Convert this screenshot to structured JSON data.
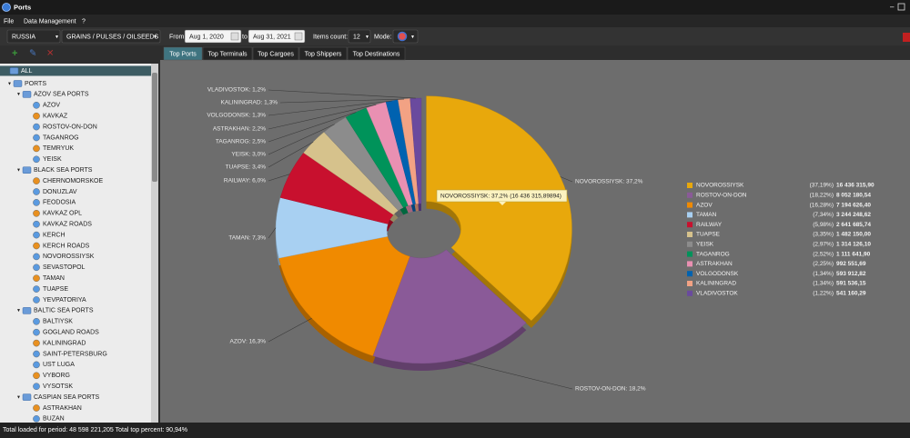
{
  "window": {
    "title": "Ports"
  },
  "menu": [
    "File",
    "Data Management",
    "?"
  ],
  "toolbar": {
    "country": "RUSSIA",
    "cargo": "GRAINS / PULSES / OILSEEDS",
    "from_label": "From",
    "from": "Aug 1, 2020",
    "to_label": "to",
    "to": "Aug 31, 2021",
    "items_label": "Items count:",
    "items": "12",
    "mode_label": "Mode:"
  },
  "tree": [
    {
      "label": "ALL",
      "level": 0
    },
    {
      "label": "PORTS",
      "level": 1
    },
    {
      "label": "AZOV SEA PORTS",
      "level": 2
    },
    {
      "label": "AZOV",
      "level": 3
    },
    {
      "label": "KAVKAZ",
      "level": 3
    },
    {
      "label": "ROSTOV-ON-DON",
      "level": 3
    },
    {
      "label": "TAGANROG",
      "level": 3
    },
    {
      "label": "TEMRYUK",
      "level": 3
    },
    {
      "label": "YEISK",
      "level": 3
    },
    {
      "label": "BLACK SEA PORTS",
      "level": 2
    },
    {
      "label": "CHERNOMORSKOE",
      "level": 3
    },
    {
      "label": "DONUZLAV",
      "level": 3
    },
    {
      "label": "FEODOSIA",
      "level": 3
    },
    {
      "label": "KAVKAZ OPL",
      "level": 3
    },
    {
      "label": "KAVKAZ ROADS",
      "level": 3
    },
    {
      "label": "KERCH",
      "level": 3
    },
    {
      "label": "KERCH ROADS",
      "level": 3
    },
    {
      "label": "NOVOROSSIYSK",
      "level": 3
    },
    {
      "label": "SEVASTOPOL",
      "level": 3
    },
    {
      "label": "TAMAN",
      "level": 3
    },
    {
      "label": "TUAPSE",
      "level": 3
    },
    {
      "label": "YEVPATORIYA",
      "level": 3
    },
    {
      "label": "BALTIC SEA PORTS",
      "level": 2
    },
    {
      "label": "BALTIYSK",
      "level": 3
    },
    {
      "label": "GOGLAND ROADS",
      "level": 3
    },
    {
      "label": "KALININGRAD",
      "level": 3
    },
    {
      "label": "SAINT-PETERSBURG",
      "level": 3
    },
    {
      "label": "UST LUGA",
      "level": 3
    },
    {
      "label": "VYBORG",
      "level": 3
    },
    {
      "label": "VYSOTSK",
      "level": 3
    },
    {
      "label": "CASPIAN SEA PORTS",
      "level": 2
    },
    {
      "label": "ASTRAKHAN",
      "level": 3
    },
    {
      "label": "BUZAN",
      "level": 3
    }
  ],
  "tabs": [
    "Top Ports",
    "Top Terminals",
    "Top Cargoes",
    "Top Shippers",
    "Top Destinations"
  ],
  "active_tab": 0,
  "chart_data": {
    "type": "donut",
    "categories": [
      "NOVOROSSIYSK",
      "ROSTOV-ON-DON",
      "AZOV",
      "TAMAN",
      "RAILWAY",
      "TUAPSE",
      "YEISK",
      "TAGANROG",
      "ASTRAKHAN",
      "VOLGODONSK",
      "KALININGRAD",
      "VLADIVOSTOK"
    ],
    "values": [
      16436315.9,
      8052180.54,
      7194626.4,
      3244248.62,
      2641685.74,
      1482150.0,
      1314126.1,
      1111641.9,
      992551.69,
      593912.82,
      591536.15,
      541160.29
    ],
    "value_labels": [
      "16 436 315,90",
      "8 052 180,54",
      "7 194 626,40",
      "3 244 248,62",
      "2 641 685,74",
      "1 482 150,00",
      "1 314 126,10",
      "1 111 641,90",
      "992 551,69",
      "593 912,82",
      "591 536,15",
      "541 160,29"
    ],
    "percent_labels": [
      "(37,19%)",
      "(18,22%)",
      "(16,28%)",
      "(7,34%)",
      "(5,98%)",
      "(3,35%)",
      "(2,97%)",
      "(2,52%)",
      "(2,25%)",
      "(1,34%)",
      "(1,34%)",
      "(1,22%)"
    ],
    "slice_labels": [
      "NOVOROSSIYSK: 37,2%",
      "ROSTOV-ON-DON: 18,2%",
      "AZOV: 16,3%",
      "TAMAN: 7,3%",
      "RAILWAY: 6,0%",
      "TUAPSE: 3,4%",
      "YEISK: 3,0%",
      "TAGANROG: 2,5%",
      "ASTRAKHAN: 2,2%",
      "VOLGODONSK: 1,3%",
      "KALININGRAD: 1,3%",
      "VLADIVOSTOK: 1,2%"
    ],
    "colors": [
      "#e8a80c",
      "#8a5a98",
      "#f08a00",
      "#a8d0f2",
      "#c8102e",
      "#d6c28c",
      "#8c8c8c",
      "#00935a",
      "#e990b2",
      "#0062b0",
      "#f2a284",
      "#6a4a9e"
    ],
    "tooltip": "NOVOROSSIYSK: 37,2% (16 436 315,89894)"
  },
  "status": "Total loaded for period: 48 598 221,205 Total top percent: 90,94%"
}
